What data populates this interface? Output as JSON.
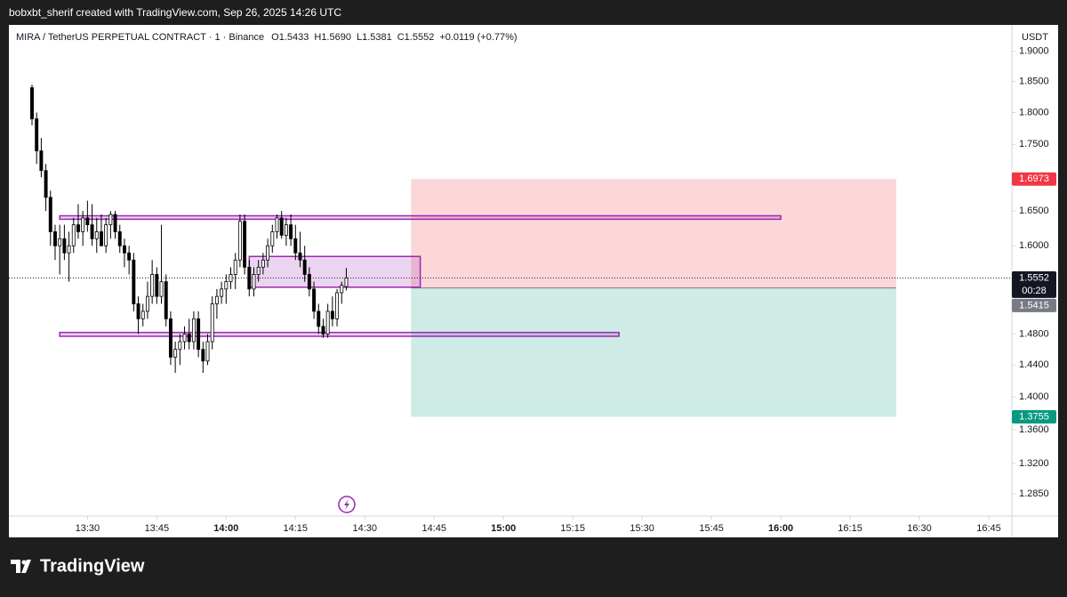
{
  "chart_data": {
    "type": "candlestick",
    "created": "bobxbt_sherif created with TradingView.com, Sep 26, 2025 14:26 UTC",
    "symbol": "MIRA / TetherUS PERPETUAL CONTRACT · 1 · Binance",
    "ohlc_legend": [
      "O1.5433",
      "H1.5690",
      "L1.5381",
      "C1.5552"
    ],
    "change": "+0.0119 (+0.77%)",
    "currency": "USDT",
    "brand": "TradingView",
    "up_color": "#ffffff",
    "down_color": "#000000",
    "log_scale": true,
    "xlim": [
      "13:13",
      "16:50"
    ],
    "xticks": [
      "13:30",
      "13:45",
      "14:00",
      "14:15",
      "14:30",
      "14:45",
      "15:00",
      "15:15",
      "15:30",
      "15:45",
      "16:00",
      "16:15",
      "16:30",
      "16:45"
    ],
    "ylim": [
      1.26,
      1.945
    ],
    "yticks": [
      {
        "value": 1.9,
        "label": "1.9000"
      },
      {
        "value": 1.85,
        "label": "1.8500"
      },
      {
        "value": 1.8,
        "label": "1.8000"
      },
      {
        "value": 1.75,
        "label": "1.7500"
      },
      {
        "value": 1.65,
        "label": "1.6500"
      },
      {
        "value": 1.6,
        "label": "1.6000"
      },
      {
        "value": 1.48,
        "label": "1.4800"
      },
      {
        "value": 1.44,
        "label": "1.4400"
      },
      {
        "value": 1.4,
        "label": "1.4000"
      },
      {
        "value": 1.36,
        "label": "1.3600"
      },
      {
        "value": 1.32,
        "label": "1.3200"
      },
      {
        "value": 1.285,
        "label": "1.2850"
      }
    ],
    "x": [
      "13:18",
      "13:19",
      "13:20",
      "13:21",
      "13:22",
      "13:23",
      "13:24",
      "13:25",
      "13:26",
      "13:27",
      "13:28",
      "13:29",
      "13:30",
      "13:31",
      "13:32",
      "13:33",
      "13:34",
      "13:35",
      "13:36",
      "13:37",
      "13:38",
      "13:39",
      "13:40",
      "13:41",
      "13:42",
      "13:43",
      "13:44",
      "13:45",
      "13:46",
      "13:47",
      "13:48",
      "13:49",
      "13:50",
      "13:51",
      "13:52",
      "13:53",
      "13:54",
      "13:55",
      "13:56",
      "13:57",
      "13:58",
      "13:59",
      "14:00",
      "14:01",
      "14:02",
      "14:03",
      "14:04",
      "14:05",
      "14:06",
      "14:07",
      "14:08",
      "14:09",
      "14:10",
      "14:11",
      "14:12",
      "14:13",
      "14:14",
      "14:15",
      "14:16",
      "14:17",
      "14:18",
      "14:19",
      "14:20",
      "14:21",
      "14:22",
      "14:23",
      "14:24",
      "14:25",
      "14:26"
    ],
    "open": [
      1.84,
      1.79,
      1.74,
      1.71,
      1.67,
      1.62,
      1.6,
      1.61,
      1.59,
      1.6,
      1.63,
      1.62,
      1.64,
      1.63,
      1.61,
      1.62,
      1.6,
      1.63,
      1.645,
      1.62,
      1.6,
      1.59,
      1.58,
      1.52,
      1.5,
      1.51,
      1.53,
      1.56,
      1.53,
      1.55,
      1.5,
      1.45,
      1.46,
      1.47,
      1.48,
      1.47,
      1.5,
      1.46,
      1.445,
      1.47,
      1.52,
      1.53,
      1.54,
      1.55,
      1.56,
      1.58,
      1.635,
      1.57,
      1.54,
      1.56,
      1.57,
      1.58,
      1.6,
      1.62,
      1.64,
      1.615,
      1.63,
      1.61,
      1.59,
      1.58,
      1.56,
      1.54,
      1.51,
      1.49,
      1.48,
      1.51,
      1.5,
      1.535,
      1.5433
    ],
    "high": [
      1.845,
      1.8,
      1.76,
      1.72,
      1.68,
      1.63,
      1.63,
      1.63,
      1.62,
      1.64,
      1.66,
      1.65,
      1.665,
      1.66,
      1.64,
      1.645,
      1.64,
      1.65,
      1.65,
      1.63,
      1.61,
      1.6,
      1.59,
      1.53,
      1.52,
      1.55,
      1.58,
      1.57,
      1.63,
      1.56,
      1.51,
      1.47,
      1.48,
      1.49,
      1.5,
      1.51,
      1.51,
      1.47,
      1.48,
      1.53,
      1.54,
      1.55,
      1.56,
      1.57,
      1.59,
      1.645,
      1.645,
      1.58,
      1.57,
      1.58,
      1.59,
      1.61,
      1.63,
      1.645,
      1.65,
      1.64,
      1.645,
      1.63,
      1.62,
      1.6,
      1.57,
      1.55,
      1.52,
      1.5,
      1.52,
      1.53,
      1.54,
      1.55,
      1.569
    ],
    "low": [
      1.78,
      1.72,
      1.7,
      1.65,
      1.6,
      1.58,
      1.56,
      1.58,
      1.55,
      1.59,
      1.61,
      1.6,
      1.62,
      1.6,
      1.59,
      1.6,
      1.59,
      1.61,
      1.61,
      1.59,
      1.57,
      1.56,
      1.51,
      1.48,
      1.49,
      1.5,
      1.52,
      1.52,
      1.52,
      1.49,
      1.44,
      1.43,
      1.44,
      1.46,
      1.46,
      1.46,
      1.45,
      1.43,
      1.44,
      1.46,
      1.5,
      1.52,
      1.52,
      1.54,
      1.54,
      1.57,
      1.56,
      1.53,
      1.53,
      1.55,
      1.56,
      1.57,
      1.59,
      1.61,
      1.61,
      1.6,
      1.6,
      1.58,
      1.57,
      1.55,
      1.53,
      1.5,
      1.48,
      1.475,
      1.475,
      1.49,
      1.49,
      1.52,
      1.5381
    ],
    "close": [
      1.79,
      1.74,
      1.71,
      1.67,
      1.62,
      1.6,
      1.61,
      1.59,
      1.6,
      1.63,
      1.62,
      1.64,
      1.63,
      1.61,
      1.62,
      1.6,
      1.63,
      1.645,
      1.62,
      1.6,
      1.59,
      1.58,
      1.52,
      1.5,
      1.51,
      1.53,
      1.56,
      1.53,
      1.55,
      1.5,
      1.45,
      1.46,
      1.47,
      1.48,
      1.47,
      1.5,
      1.46,
      1.445,
      1.47,
      1.52,
      1.53,
      1.54,
      1.55,
      1.56,
      1.58,
      1.635,
      1.57,
      1.54,
      1.56,
      1.57,
      1.58,
      1.6,
      1.62,
      1.64,
      1.615,
      1.63,
      1.61,
      1.59,
      1.58,
      1.56,
      1.54,
      1.51,
      1.49,
      1.48,
      1.51,
      1.5,
      1.535,
      1.545,
      1.5552
    ],
    "rectangles": [
      {
        "from": "13:24",
        "to": "16:00",
        "top": 1.643,
        "bottom": 1.638,
        "color": "#9c27b0"
      },
      {
        "from": "13:24",
        "to": "15:25",
        "top": 1.482,
        "bottom": 1.477,
        "color": "#9c27b0"
      },
      {
        "from": "14:05",
        "to": "14:42",
        "top": 1.585,
        "bottom": 1.5425,
        "color": "#9c27b0"
      }
    ],
    "position": {
      "from": "14:40",
      "to": "16:25",
      "entry": 1.5415,
      "stop": 1.6973,
      "target": 1.3755,
      "stop_color": "#f23645",
      "target_color": "#089981"
    },
    "last_price": 1.5552,
    "price_labels": [
      {
        "value": 1.6973,
        "label": "1.6973",
        "color": "#f23645"
      },
      {
        "value": 1.5552,
        "label": "1.5552",
        "sub": "00:28",
        "color": "#131722"
      },
      {
        "value": 1.5415,
        "label": "1.5415",
        "color": "#787b86"
      },
      {
        "value": 1.3755,
        "label": "1.3755",
        "color": "#089981"
      }
    ]
  }
}
